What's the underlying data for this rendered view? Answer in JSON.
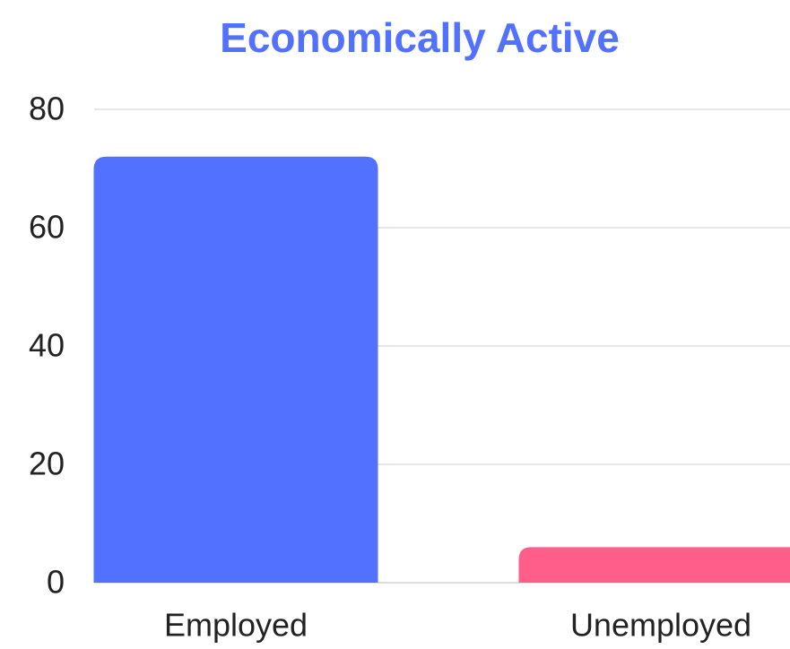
{
  "chart_data": {
    "type": "bar",
    "title": "Economically Active",
    "categories": [
      "Employed",
      "Unemployed"
    ],
    "values": [
      72,
      6
    ],
    "colors": [
      "#5271ff",
      "#ff5e8a"
    ],
    "ylim": [
      0,
      80
    ],
    "yticks": [
      0,
      20,
      40,
      60,
      80
    ],
    "grid": true
  }
}
